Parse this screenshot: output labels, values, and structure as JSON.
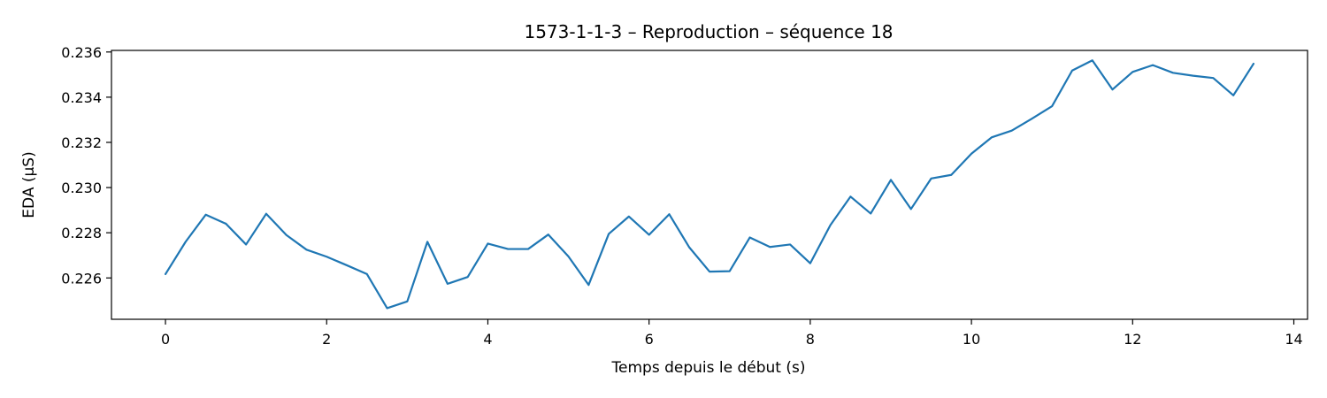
{
  "chart_data": {
    "type": "line",
    "title": "1573-1-1-3 – Reproduction – séquence 18",
    "xlabel": "Temps depuis le début (s)",
    "ylabel": "EDA (µS)",
    "xlim": [
      -0.67,
      14.17
    ],
    "ylim": [
      0.22417,
      0.23607
    ],
    "xticks": [
      0,
      2,
      4,
      6,
      8,
      10,
      12,
      14
    ],
    "yticks": [
      0.226,
      0.228,
      0.23,
      0.232,
      0.234,
      0.236
    ],
    "ytick_labels": [
      "0.226",
      "0.228",
      "0.230",
      "0.232",
      "0.234",
      "0.236"
    ],
    "grid": false,
    "series": [
      {
        "color": "#1f77b4",
        "x": [
          0,
          0.25,
          0.5,
          0.75,
          1.0,
          1.25,
          1.5,
          1.75,
          2.0,
          2.25,
          2.5,
          2.75,
          3.0,
          3.25,
          3.5,
          3.75,
          4.0,
          4.25,
          4.5,
          4.75,
          5.0,
          5.25,
          5.5,
          5.75,
          6.0,
          6.25,
          6.5,
          6.75,
          7.0,
          7.25,
          7.5,
          7.75,
          8.0,
          8.25,
          8.5,
          8.75,
          9.0,
          9.25,
          9.5,
          9.75,
          10.0,
          10.25,
          10.5,
          10.75,
          11.0,
          11.25,
          11.5,
          11.75,
          12.0,
          12.25,
          12.5,
          12.75,
          13.0,
          13.25,
          13.5
        ],
        "y": [
          0.22617,
          0.2276,
          0.2288,
          0.2284,
          0.22748,
          0.22884,
          0.2279,
          0.22725,
          0.22694,
          0.22656,
          0.22617,
          0.22466,
          0.22496,
          0.2276,
          0.22574,
          0.22604,
          0.22752,
          0.22728,
          0.22728,
          0.22792,
          0.22695,
          0.22569,
          0.22795,
          0.22872,
          0.22791,
          0.22882,
          0.22735,
          0.22628,
          0.2263,
          0.22779,
          0.22737,
          0.22748,
          0.22665,
          0.22834,
          0.2296,
          0.22885,
          0.23034,
          0.22905,
          0.2304,
          0.23056,
          0.2315,
          0.23222,
          0.23252,
          0.23305,
          0.2336,
          0.23518,
          0.23563,
          0.23434,
          0.23512,
          0.23542,
          0.23508,
          0.23495,
          0.23485,
          0.23408,
          0.23548
        ]
      }
    ]
  }
}
